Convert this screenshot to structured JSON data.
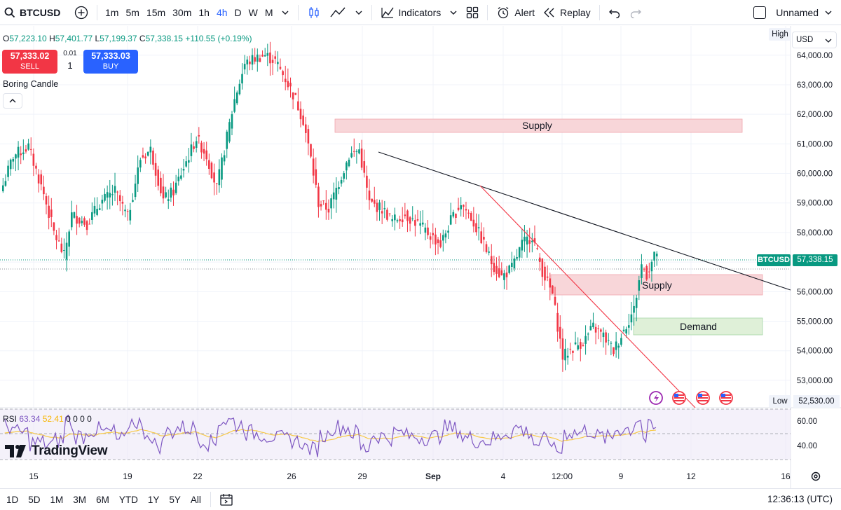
{
  "toolbar": {
    "symbol": "BTCUSD",
    "intervals": [
      "1m",
      "5m",
      "15m",
      "30m",
      "1h",
      "4h",
      "D",
      "W",
      "M"
    ],
    "active_interval": "4h",
    "indicators_label": "Indicators",
    "alert_label": "Alert",
    "replay_label": "Replay",
    "layout_name": "Unnamed"
  },
  "legend": {
    "o_label": "O",
    "o": "57,223.10",
    "h_label": "H",
    "h": "57,401.77",
    "l_label": "L",
    "l": "57,199.37",
    "c_label": "C",
    "c": "57,338.15",
    "change": "+110.55 (+0.19%)",
    "sell_price": "57,333.02",
    "sell_label": "SELL",
    "buy_price": "57,333.03",
    "buy_label": "BUY",
    "spread": "0.01",
    "quantity": "1",
    "indicator": "Boring Candle"
  },
  "rsi": {
    "name": "RSI",
    "value": "63.34",
    "ma": "52.41",
    "extras": "0 0 0 0"
  },
  "price_scale": {
    "currency": "USD",
    "high_label": "High",
    "low_label": "Low",
    "low_value": "52,530.00",
    "symbol_tag": "BTCUSD",
    "last_price": "57,338.15",
    "ticks": [
      "64,000.00",
      "63,000.00",
      "62,000.00",
      "61,000.00",
      "60,000.00",
      "59,000.00",
      "58,000.00",
      "57,000.00",
      "56,000.00",
      "55,000.00",
      "54,000.00",
      "53,000.00"
    ],
    "rsi_ticks": [
      "60.00",
      "40.00"
    ]
  },
  "time_axis": [
    "15",
    "19",
    "22",
    "26",
    "29",
    "Sep",
    "4",
    "12:00",
    "9",
    "12",
    "16"
  ],
  "zones": {
    "supply_top": "Supply",
    "supply_low": "Supply",
    "demand": "Demand"
  },
  "bottom": {
    "ranges": [
      "1D",
      "5D",
      "1M",
      "3M",
      "6M",
      "YTD",
      "1Y",
      "5Y",
      "All"
    ],
    "clock": "12:36:13 (UTC)"
  },
  "logo": "TradingView",
  "colors": {
    "up": "#089981",
    "down": "#f23645",
    "accent": "#2962ff",
    "rsi": "#7e57c2",
    "rsi_ma": "#f7b500"
  },
  "chart_data": {
    "type": "candlestick",
    "symbol": "BTCUSD",
    "interval": "4h",
    "ylim": [
      52500,
      64800
    ],
    "rsi_ylim": [
      30,
      70
    ],
    "x_ticks": [
      "15",
      "19",
      "22",
      "26",
      "29",
      "Sep",
      "4",
      "12:00",
      "9",
      "12",
      "16"
    ],
    "anchors": [
      [
        0,
        59600
      ],
      [
        4,
        60600
      ],
      [
        10,
        60900
      ],
      [
        16,
        59300
      ],
      [
        20,
        58000
      ],
      [
        24,
        57200
      ],
      [
        27,
        58600
      ],
      [
        33,
        58300
      ],
      [
        38,
        59000
      ],
      [
        44,
        59400
      ],
      [
        49,
        58500
      ],
      [
        54,
        60500
      ],
      [
        58,
        60800
      ],
      [
        63,
        59100
      ],
      [
        67,
        59400
      ],
      [
        71,
        60200
      ],
      [
        76,
        61200
      ],
      [
        80,
        60600
      ],
      [
        84,
        59500
      ],
      [
        87,
        60800
      ],
      [
        91,
        62500
      ],
      [
        95,
        63700
      ],
      [
        99,
        63900
      ],
      [
        103,
        64000
      ],
      [
        107,
        63800
      ],
      [
        111,
        63200
      ],
      [
        115,
        62500
      ],
      [
        118,
        61800
      ],
      [
        121,
        60500
      ],
      [
        124,
        59000
      ],
      [
        128,
        58800
      ],
      [
        132,
        59700
      ],
      [
        136,
        60600
      ],
      [
        140,
        60800
      ],
      [
        144,
        59000
      ],
      [
        149,
        58800
      ],
      [
        153,
        58400
      ],
      [
        158,
        58600
      ],
      [
        163,
        58300
      ],
      [
        168,
        57900
      ],
      [
        172,
        57600
      ],
      [
        176,
        58400
      ],
      [
        180,
        59000
      ],
      [
        184,
        58500
      ],
      [
        188,
        57800
      ],
      [
        192,
        57000
      ],
      [
        196,
        56500
      ],
      [
        200,
        56800
      ],
      [
        204,
        57600
      ],
      [
        208,
        57900
      ],
      [
        212,
        56700
      ],
      [
        216,
        55900
      ],
      [
        220,
        53800
      ],
      [
        224,
        54100
      ],
      [
        228,
        54300
      ],
      [
        232,
        54800
      ],
      [
        236,
        54500
      ],
      [
        240,
        54000
      ],
      [
        244,
        54700
      ],
      [
        248,
        55400
      ],
      [
        251,
        56900
      ],
      [
        253,
        56600
      ],
      [
        255,
        57000
      ],
      [
        257,
        57340
      ]
    ]
  }
}
